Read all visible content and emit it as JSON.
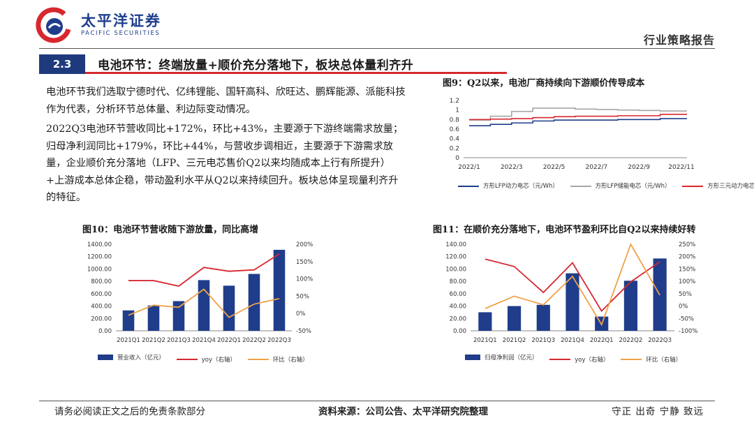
{
  "header": {
    "logo_cn": "太平洋证券",
    "logo_en": "PACIFIC SECURITIES",
    "report_type": "行业策略报告"
  },
  "section": {
    "number": "2.3",
    "title": "电池环节：终端放量+顺价充分落地下，板块总体量利齐升"
  },
  "body": {
    "paragraph1": "电池环节我们选取宁德时代、亿纬锂能、国轩高科、欣旺达、鹏辉能源、派能科技作为代表，分析环节总体量、利边际变动情况。",
    "paragraph2": "2022Q3电池环节营收同比+172%，环比+43%，主要源于下游终端需求放量；归母净利润同比+179%，环比+44%，与营收步调相近，主要源于下游需求放量，企业顺价充分落地（LFP、三元电芯售价Q2以来均随成本上行有所提升）+上游成本总体企稳，带动盈利水平从Q2以来持续回升。板块总体呈现量利齐升的特征。"
  },
  "fig9": {
    "title": "图9：Q2以来，电池厂商持续向下游顺价传导成本",
    "legend": [
      "方形LFP动力电芯（元/Wh）",
      "方形LFP储能电芯（元/Wh）",
      "方形三元动力电芯（元/Wh）"
    ],
    "colors": [
      "#1f3d8a",
      "#a6a6a6",
      "#d7282f"
    ]
  },
  "fig10": {
    "title": "图10：电池环节营收随下游放量，同比高增",
    "legend": [
      "营业收入（亿元）",
      "yoy（右轴）",
      "环比（右轴）"
    ],
    "colors": [
      "#1f3d8a",
      "#d7282f",
      "#f0a24a"
    ]
  },
  "fig11": {
    "title": "图11：在顺价充分落地下，电池环节盈利环比自Q2以来持续好转",
    "legend": [
      "归母净利润（亿元）",
      "yoy（右轴）",
      "环比（右轴）"
    ],
    "colors": [
      "#1f3d8a",
      "#d7282f",
      "#f0a24a"
    ]
  },
  "chart_data": [
    {
      "type": "line",
      "title": "图9：Q2以来，电池厂商持续向下游顺价传导成本",
      "x_ticks": [
        "2022/1",
        "2022/3",
        "2022/5",
        "2022/7",
        "2022/9",
        "2022/11"
      ],
      "x": [
        "2022/1",
        "2022/2",
        "2022/3",
        "2022/4",
        "2022/5",
        "2022/6",
        "2022/7",
        "2022/8",
        "2022/9",
        "2022/10",
        "2022/11"
      ],
      "ylim": [
        0,
        1.2
      ],
      "y_ticks": [
        "0",
        "0.2",
        "0.4",
        "0.6",
        "0.8",
        "1",
        "1.2"
      ],
      "series": [
        {
          "name": "方形LFP动力电芯（元/Wh）",
          "values": [
            0.67,
            0.7,
            0.73,
            0.77,
            0.79,
            0.79,
            0.79,
            0.8,
            0.8,
            0.82,
            0.82
          ]
        },
        {
          "name": "方形LFP储能电芯（元/Wh）",
          "values": [
            0.79,
            0.87,
            0.97,
            1.04,
            1.04,
            1.02,
            1.01,
            1.0,
            0.99,
            0.98,
            0.98
          ]
        },
        {
          "name": "方形三元动力电芯（元/Wh）",
          "values": [
            0.8,
            0.81,
            0.82,
            0.84,
            0.86,
            0.87,
            0.87,
            0.88,
            0.88,
            0.91,
            0.91
          ]
        }
      ]
    },
    {
      "type": "bar",
      "title": "图10：电池环节营收随下游放量，同比高增",
      "categories": [
        "2021Q1",
        "2021Q2",
        "2021Q3",
        "2021Q4",
        "2022Q1",
        "2022Q2",
        "2022Q3"
      ],
      "ylim": [
        0,
        1400
      ],
      "y_ticks": [
        "0.00",
        "200.00",
        "400.00",
        "600.00",
        "800.00",
        "1000.00",
        "1200.00",
        "1400.00"
      ],
      "y2lim": [
        -50,
        200
      ],
      "y2_ticks": [
        "-50%",
        "0%",
        "50%",
        "100%",
        "150%",
        "200%"
      ],
      "series": [
        {
          "name": "营业收入（亿元）",
          "axis": "left",
          "kind": "bar",
          "values": [
            330,
            410,
            480,
            820,
            730,
            920,
            1310
          ]
        },
        {
          "name": "yoy（右轴）",
          "axis": "right",
          "kind": "line",
          "values": [
            95,
            95,
            79,
            133,
            122,
            126,
            172
          ]
        },
        {
          "name": "环比（右轴）",
          "axis": "right",
          "kind": "line",
          "values": [
            -5,
            24,
            18,
            70,
            -11,
            27,
            43
          ]
        }
      ]
    },
    {
      "type": "bar",
      "title": "图11：在顺价充分落地下，电池环节盈利环比自Q2以来持续好转",
      "categories": [
        "2021Q1",
        "2021Q2",
        "2021Q3",
        "2021Q4",
        "2022Q1",
        "2022Q2",
        "2022Q3"
      ],
      "ylim": [
        0,
        140
      ],
      "y_ticks": [
        "0.00",
        "20.00",
        "40.00",
        "60.00",
        "80.00",
        "100.00",
        "120.00",
        "140.00"
      ],
      "y2lim": [
        -100,
        250
      ],
      "y2_ticks": [
        "-100%",
        "-50%",
        "0%",
        "50%",
        "100%",
        "150%",
        "200%",
        "250%"
      ],
      "series": [
        {
          "name": "归母净利润（亿元）",
          "axis": "left",
          "kind": "bar",
          "values": [
            30,
            40,
            42,
            93,
            23,
            81,
            117
          ]
        },
        {
          "name": "yoy（右轴）",
          "axis": "right",
          "kind": "line",
          "values": [
            190,
            160,
            55,
            175,
            -20,
            98,
            179
          ]
        },
        {
          "name": "环比（右轴）",
          "axis": "right",
          "kind": "line",
          "values": [
            -10,
            40,
            5,
            120,
            -75,
            250,
            44
          ]
        }
      ]
    }
  ],
  "footer": {
    "disclaimer": "请务必阅读正文之后的免责条款部分",
    "source": "资料来源：公司公告、太平洋研究院整理",
    "motto": "守正 出奇 宁静 致远"
  }
}
